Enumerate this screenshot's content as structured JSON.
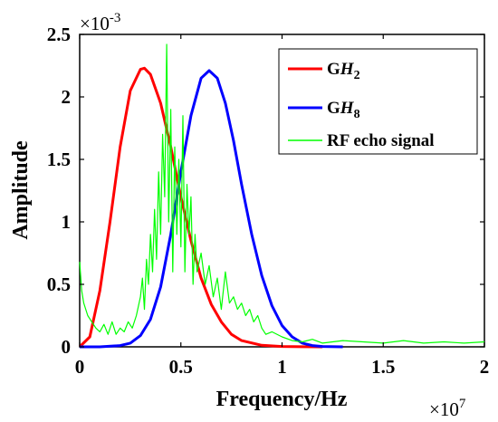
{
  "chart_data": {
    "type": "line",
    "xlabel": "Frequency/Hz",
    "ylabel": "Amplitude",
    "x_multiplier": "×10",
    "x_exponent": "7",
    "y_multiplier": "×10",
    "y_exponent": "-3",
    "xlim": [
      0,
      2
    ],
    "ylim": [
      0,
      2.5
    ],
    "xticks": [
      0,
      0.5,
      1,
      1.5,
      2
    ],
    "xtick_labels": [
      "0",
      "0.5",
      "1",
      "1.5",
      "2"
    ],
    "yticks": [
      0,
      0.5,
      1,
      1.5,
      2,
      2.5
    ],
    "ytick_labels": [
      "0",
      "0.5",
      "1",
      "1.5",
      "2",
      "2.5"
    ],
    "grid": false,
    "legend_position": "top-right",
    "series": [
      {
        "name": "GH2",
        "name_main": "G",
        "name_italic": "H",
        "name_sub": "2",
        "color": "#ff0000",
        "x": [
          0,
          0.05,
          0.1,
          0.15,
          0.2,
          0.25,
          0.3,
          0.32,
          0.35,
          0.4,
          0.45,
          0.5,
          0.55,
          0.6,
          0.65,
          0.7,
          0.75,
          0.8,
          0.9,
          1.0,
          1.1,
          1.2
        ],
        "y": [
          0,
          0.08,
          0.45,
          1.0,
          1.6,
          2.05,
          2.22,
          2.23,
          2.18,
          1.95,
          1.6,
          1.2,
          0.85,
          0.55,
          0.34,
          0.2,
          0.1,
          0.05,
          0.012,
          0.003,
          0.001,
          0
        ]
      },
      {
        "name": "GH8",
        "name_main": "G",
        "name_italic": "H",
        "name_sub": "8",
        "color": "#0000ff",
        "x": [
          0,
          0.1,
          0.2,
          0.25,
          0.3,
          0.35,
          0.4,
          0.45,
          0.5,
          0.55,
          0.6,
          0.64,
          0.68,
          0.72,
          0.76,
          0.8,
          0.85,
          0.9,
          0.95,
          1.0,
          1.05,
          1.1,
          1.15,
          1.2,
          1.3
        ],
        "y": [
          0,
          0,
          0.01,
          0.03,
          0.09,
          0.22,
          0.48,
          0.9,
          1.4,
          1.85,
          2.15,
          2.21,
          2.15,
          1.95,
          1.65,
          1.3,
          0.9,
          0.57,
          0.33,
          0.17,
          0.08,
          0.03,
          0.01,
          0.003,
          0
        ]
      },
      {
        "name": "RF echo signal",
        "color": "#00ff00",
        "x": [
          0,
          0.01,
          0.02,
          0.04,
          0.06,
          0.08,
          0.1,
          0.12,
          0.14,
          0.16,
          0.18,
          0.2,
          0.22,
          0.24,
          0.26,
          0.28,
          0.3,
          0.31,
          0.32,
          0.33,
          0.34,
          0.35,
          0.36,
          0.37,
          0.38,
          0.39,
          0.4,
          0.41,
          0.42,
          0.43,
          0.44,
          0.45,
          0.46,
          0.47,
          0.48,
          0.49,
          0.5,
          0.51,
          0.52,
          0.53,
          0.54,
          0.55,
          0.56,
          0.57,
          0.58,
          0.6,
          0.62,
          0.64,
          0.66,
          0.68,
          0.7,
          0.72,
          0.74,
          0.76,
          0.78,
          0.8,
          0.82,
          0.84,
          0.86,
          0.88,
          0.9,
          0.92,
          0.95,
          1.0,
          1.05,
          1.1,
          1.15,
          1.2,
          1.3,
          1.4,
          1.5,
          1.6,
          1.7,
          1.8,
          1.9,
          2.0
        ],
        "y": [
          0.68,
          0.45,
          0.35,
          0.25,
          0.2,
          0.15,
          0.12,
          0.18,
          0.1,
          0.2,
          0.1,
          0.15,
          0.12,
          0.2,
          0.15,
          0.25,
          0.4,
          0.55,
          0.3,
          0.7,
          0.5,
          0.9,
          0.6,
          1.1,
          0.7,
          1.4,
          0.9,
          1.7,
          1.2,
          2.42,
          1.0,
          1.9,
          0.6,
          1.6,
          0.9,
          1.5,
          0.8,
          1.85,
          0.6,
          1.3,
          0.9,
          1.2,
          0.5,
          0.9,
          0.6,
          0.75,
          0.5,
          0.65,
          0.4,
          0.55,
          0.3,
          0.6,
          0.35,
          0.4,
          0.3,
          0.35,
          0.25,
          0.3,
          0.2,
          0.25,
          0.15,
          0.1,
          0.12,
          0.08,
          0.05,
          0.04,
          0.06,
          0.03,
          0.05,
          0.04,
          0.03,
          0.05,
          0.03,
          0.04,
          0.03,
          0.04
        ]
      }
    ]
  }
}
